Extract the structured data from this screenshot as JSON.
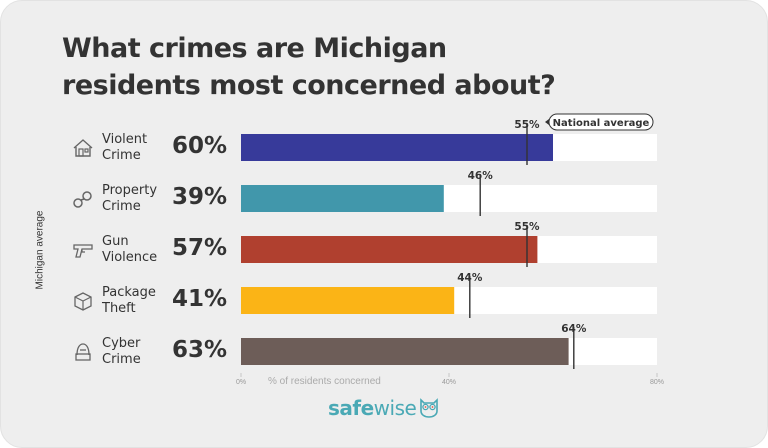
{
  "chart_data": {
    "type": "bar",
    "orientation": "horizontal",
    "title": "What crimes are Michigan residents most concerned about?",
    "title_lines": [
      "What crimes are Michigan",
      "residents most concerned about?"
    ],
    "ylabel": "Michigan average",
    "xlabel": "% of residents concerned",
    "xlim": [
      0,
      80
    ],
    "xticks": [
      "0%",
      "40%",
      "80%"
    ],
    "xtick_values": [
      0,
      40,
      80
    ],
    "categories": [
      "Violent Crime",
      "Property Crime",
      "Gun Violence",
      "Package Theft",
      "Cyber Crime"
    ],
    "category_lines": [
      [
        "Violent",
        "Crime"
      ],
      [
        "Property",
        "Crime"
      ],
      [
        "Gun",
        "Violence"
      ],
      [
        "Package",
        "Theft"
      ],
      [
        "Cyber",
        "Crime"
      ]
    ],
    "icons": [
      "house-icon",
      "handcuffs-icon",
      "gun-icon",
      "package-icon",
      "hacker-icon"
    ],
    "series": [
      {
        "name": "Michigan average",
        "values": [
          60,
          39,
          57,
          41,
          63
        ],
        "labels": [
          "60%",
          "39%",
          "57%",
          "41%",
          "63%"
        ]
      },
      {
        "name": "National average",
        "values": [
          55,
          46,
          55,
          44,
          64
        ],
        "labels": [
          "55%",
          "46%",
          "55%",
          "44%",
          "64%"
        ]
      }
    ],
    "colors": [
      "#373a9a",
      "#4197ab",
      "#b0402f",
      "#fbb416",
      "#6d5d58"
    ],
    "legend": {
      "entry": "National average",
      "placement": "top-right"
    }
  },
  "brand": {
    "name_bold": "safe",
    "name_light": "wise",
    "color": "#4aa9b5"
  }
}
